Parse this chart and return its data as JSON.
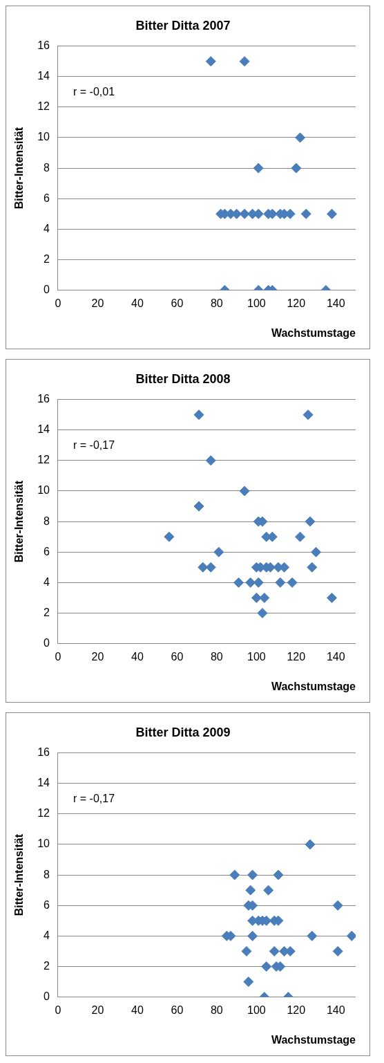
{
  "chart_data": [
    {
      "type": "scatter",
      "title": "Bitter Ditta 2007",
      "xlabel": "Wachstumstage",
      "ylabel": "Bitter-Intensität",
      "annotations": [
        "r = -0,01"
      ],
      "marker": "diamond",
      "grid": "y",
      "xlim": [
        0,
        150
      ],
      "xticks": [
        0,
        20,
        40,
        60,
        80,
        100,
        120,
        140
      ],
      "ylim": [
        0,
        16
      ],
      "yticks": [
        0,
        2,
        4,
        6,
        8,
        10,
        12,
        14,
        16
      ],
      "series": [
        {
          "color": "#4a7ebb",
          "x": [
            77,
            94,
            122,
            101,
            120,
            82,
            84,
            87,
            90,
            94,
            98,
            101,
            106,
            108,
            112,
            114,
            117,
            125,
            138,
            84,
            101,
            106,
            108,
            135
          ],
          "values": [
            15,
            15,
            10,
            8,
            8,
            5,
            5,
            5,
            5,
            5,
            5,
            5,
            5,
            5,
            5,
            5,
            5,
            5,
            5,
            0,
            0,
            0,
            0,
            0
          ]
        }
      ]
    },
    {
      "type": "scatter",
      "title": "Bitter Ditta 2008",
      "xlabel": "Wachstumstage",
      "ylabel": "Bitter-Intensität",
      "annotations": [
        "r = -0,17"
      ],
      "marker": "diamond",
      "grid": "y",
      "xlim": [
        0,
        150
      ],
      "xticks": [
        0,
        20,
        40,
        60,
        80,
        100,
        120,
        140
      ],
      "ylim": [
        0,
        16
      ],
      "yticks": [
        0,
        2,
        4,
        6,
        8,
        10,
        12,
        14,
        16
      ],
      "series": [
        {
          "color": "#4a7ebb",
          "x": [
            71,
            126,
            77,
            94,
            71,
            101,
            103,
            127,
            56,
            105,
            108,
            122,
            81,
            130,
            73,
            77,
            100,
            102,
            105,
            107,
            111,
            114,
            128,
            91,
            97,
            101,
            112,
            118,
            100,
            104,
            138,
            103
          ],
          "values": [
            15,
            15,
            12,
            10,
            9,
            8,
            8,
            8,
            7,
            7,
            7,
            7,
            6,
            6,
            5,
            5,
            5,
            5,
            5,
            5,
            5,
            5,
            5,
            4,
            4,
            4,
            4,
            4,
            3,
            3,
            3,
            2
          ]
        }
      ]
    },
    {
      "type": "scatter",
      "title": "Bitter Ditta 2009",
      "xlabel": "Wachstumstage",
      "ylabel": "Bitter-Intensität",
      "annotations": [
        "r = -0,17"
      ],
      "marker": "diamond",
      "grid": "y",
      "xlim": [
        0,
        150
      ],
      "xticks": [
        0,
        20,
        40,
        60,
        80,
        100,
        120,
        140
      ],
      "ylim": [
        0,
        16
      ],
      "yticks": [
        0,
        2,
        4,
        6,
        8,
        10,
        12,
        14,
        16
      ],
      "series": [
        {
          "color": "#4a7ebb",
          "x": [
            127,
            89,
            98,
            111,
            97,
            106,
            96,
            98,
            141,
            98,
            101,
            103,
            105,
            109,
            111,
            85,
            87,
            98,
            128,
            148,
            95,
            109,
            114,
            117,
            141,
            105,
            110,
            112,
            96,
            104,
            116
          ],
          "values": [
            10,
            8,
            8,
            8,
            7,
            7,
            6,
            6,
            6,
            5,
            5,
            5,
            5,
            5,
            5,
            4,
            4,
            4,
            4,
            4,
            3,
            3,
            3,
            3,
            3,
            2,
            2,
            2,
            1,
            0,
            0
          ]
        }
      ]
    }
  ]
}
